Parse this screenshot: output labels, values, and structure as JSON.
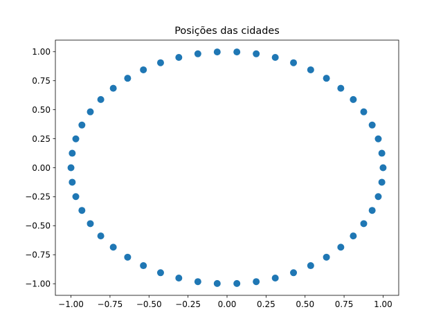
{
  "chart_data": {
    "type": "scatter",
    "title": "Posições das cidades",
    "xlabel": "",
    "ylabel": "",
    "xlim": [
      -1.1,
      1.1
    ],
    "ylim": [
      -1.1,
      1.1
    ],
    "x_ticks": [
      -1.0,
      -0.75,
      -0.5,
      -0.25,
      0.0,
      0.25,
      0.5,
      0.75,
      1.0
    ],
    "y_ticks": [
      -1.0,
      -0.75,
      -0.5,
      -0.25,
      0.0,
      0.25,
      0.5,
      0.75,
      1.0
    ],
    "x_tick_labels": [
      "−1.00",
      "−0.75",
      "−0.50",
      "−0.25",
      "0.00",
      "0.25",
      "0.50",
      "0.75",
      "1.00"
    ],
    "y_tick_labels": [
      "−1.00",
      "−0.75",
      "−0.50",
      "−0.25",
      "0.00",
      "0.25",
      "0.50",
      "0.75",
      "1.00"
    ],
    "grid": false,
    "series_color": "#1f77b4",
    "points": [
      {
        "x": 1.0,
        "y": 0.0
      },
      {
        "x": 0.992,
        "y": 0.125
      },
      {
        "x": 0.969,
        "y": 0.249
      },
      {
        "x": 0.93,
        "y": 0.368
      },
      {
        "x": 0.876,
        "y": 0.482
      },
      {
        "x": 0.809,
        "y": 0.588
      },
      {
        "x": 0.729,
        "y": 0.685
      },
      {
        "x": 0.637,
        "y": 0.771
      },
      {
        "x": 0.536,
        "y": 0.844
      },
      {
        "x": 0.426,
        "y": 0.905
      },
      {
        "x": 0.309,
        "y": 0.951
      },
      {
        "x": 0.187,
        "y": 0.982
      },
      {
        "x": 0.063,
        "y": 0.998
      },
      {
        "x": -0.063,
        "y": 0.998
      },
      {
        "x": -0.187,
        "y": 0.982
      },
      {
        "x": -0.309,
        "y": 0.951
      },
      {
        "x": -0.426,
        "y": 0.905
      },
      {
        "x": -0.536,
        "y": 0.844
      },
      {
        "x": -0.637,
        "y": 0.771
      },
      {
        "x": -0.729,
        "y": 0.685
      },
      {
        "x": -0.809,
        "y": 0.588
      },
      {
        "x": -0.876,
        "y": 0.482
      },
      {
        "x": -0.93,
        "y": 0.368
      },
      {
        "x": -0.969,
        "y": 0.249
      },
      {
        "x": -0.992,
        "y": 0.125
      },
      {
        "x": -1.0,
        "y": 0.0
      },
      {
        "x": -0.992,
        "y": -0.125
      },
      {
        "x": -0.969,
        "y": -0.249
      },
      {
        "x": -0.93,
        "y": -0.368
      },
      {
        "x": -0.876,
        "y": -0.482
      },
      {
        "x": -0.809,
        "y": -0.588
      },
      {
        "x": -0.729,
        "y": -0.685
      },
      {
        "x": -0.637,
        "y": -0.771
      },
      {
        "x": -0.536,
        "y": -0.844
      },
      {
        "x": -0.426,
        "y": -0.905
      },
      {
        "x": -0.309,
        "y": -0.951
      },
      {
        "x": -0.187,
        "y": -0.982
      },
      {
        "x": -0.063,
        "y": -0.998
      },
      {
        "x": 0.063,
        "y": -0.998
      },
      {
        "x": 0.187,
        "y": -0.982
      },
      {
        "x": 0.309,
        "y": -0.951
      },
      {
        "x": 0.426,
        "y": -0.905
      },
      {
        "x": 0.536,
        "y": -0.844
      },
      {
        "x": 0.637,
        "y": -0.771
      },
      {
        "x": 0.729,
        "y": -0.685
      },
      {
        "x": 0.809,
        "y": -0.588
      },
      {
        "x": 0.876,
        "y": -0.482
      },
      {
        "x": 0.93,
        "y": -0.368
      },
      {
        "x": 0.969,
        "y": -0.249
      },
      {
        "x": 0.992,
        "y": -0.125
      }
    ]
  }
}
